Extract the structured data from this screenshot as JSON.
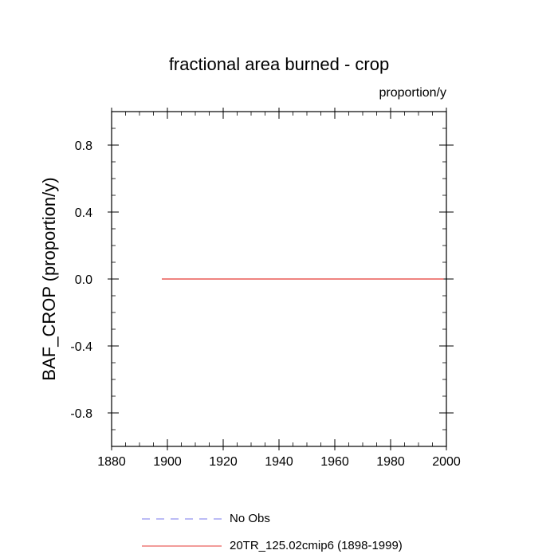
{
  "chart_data": {
    "type": "line",
    "title": "fractional area burned - crop",
    "units_label": "proportion/y",
    "ylabel": "BAF_CROP  (proportion/y)",
    "xlabel": "",
    "xlim": [
      1880,
      2000
    ],
    "ylim": [
      -1.0,
      1.0
    ],
    "x_ticks": [
      1880,
      1900,
      1920,
      1940,
      1960,
      1980,
      2000
    ],
    "x_tick_labels": [
      "1880",
      "1900",
      "1920",
      "1940",
      "1960",
      "1980",
      "2000"
    ],
    "y_ticks": [
      -0.8,
      -0.4,
      0.0,
      0.4,
      0.8
    ],
    "y_tick_labels": [
      "-0.8",
      "-0.4",
      "0.0",
      "0.4",
      "0.8"
    ],
    "grid": false,
    "legend_position": "bottom",
    "series": [
      {
        "name": "No Obs",
        "color": "#7777ee",
        "style": "dashed",
        "x": [],
        "y": []
      },
      {
        "name": "20TR_125.02cmip6 (1898-1999)",
        "color": "#e53935",
        "style": "solid",
        "x": [
          1898,
          1999
        ],
        "y": [
          0.0,
          0.0
        ]
      }
    ]
  }
}
